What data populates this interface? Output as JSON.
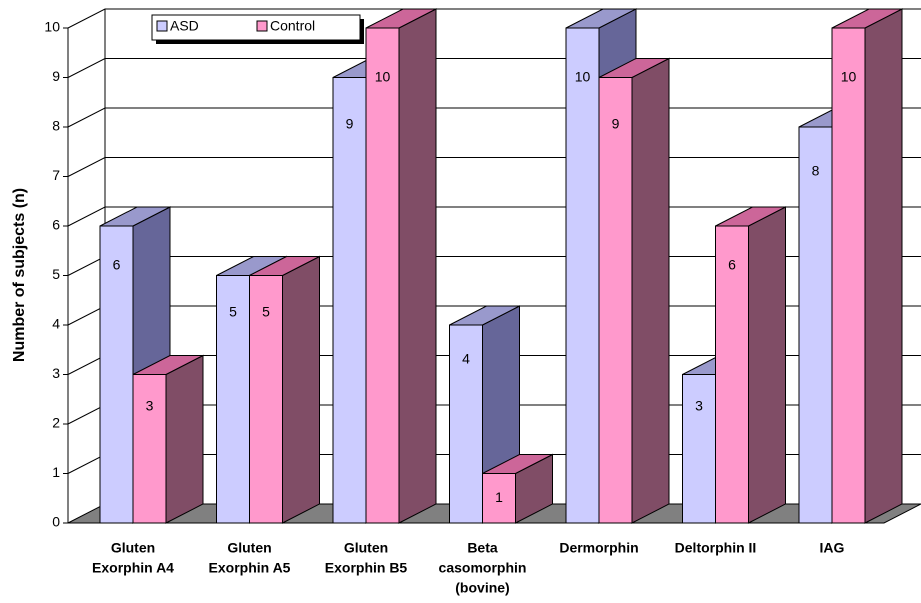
{
  "chart_data": {
    "type": "bar3d",
    "y_label": "Number of subjects (n)",
    "categories": [
      [
        "Gluten",
        "Exorphin A4"
      ],
      [
        "Gluten",
        "Exorphin A5"
      ],
      [
        "Gluten",
        "Exorphin B5"
      ],
      [
        "Beta",
        "casomorphin",
        "(bovine)"
      ],
      [
        "Dermorphin"
      ],
      [
        "Deltorphin II"
      ],
      [
        "IAG"
      ]
    ],
    "series": [
      {
        "name": "ASD",
        "color": "#ccccff",
        "side_color": "#666699",
        "top_color": "#9999cc",
        "values": [
          6,
          5,
          9,
          4,
          10,
          3,
          8
        ]
      },
      {
        "name": "Control",
        "color": "#ff99cc",
        "side_color": "#804d66",
        "top_color": "#cc6699",
        "values": [
          3,
          5,
          10,
          1,
          9,
          6,
          10
        ]
      }
    ],
    "ylim": [
      0,
      10
    ],
    "yticks": [
      0,
      1,
      2,
      3,
      4,
      5,
      6,
      7,
      8,
      9,
      10
    ],
    "grid": true,
    "legend": "top-left"
  }
}
